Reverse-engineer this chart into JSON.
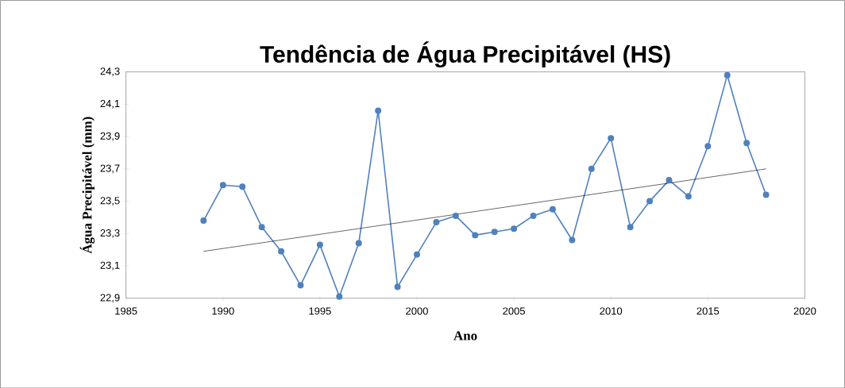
{
  "chart_data": {
    "type": "line",
    "title": "Tendência de Água Precipitável (HS)",
    "xlabel": "Ano",
    "ylabel": "Água Precipitável (mm)",
    "xlim": [
      1985,
      2020
    ],
    "xticks": [
      1985,
      1990,
      1995,
      2000,
      2005,
      2010,
      2015,
      2020
    ],
    "ylim": [
      22.9,
      24.3
    ],
    "yticks": [
      {
        "value": 22.9,
        "label": "22,9"
      },
      {
        "value": 23.1,
        "label": "23,1"
      },
      {
        "value": 23.3,
        "label": "23,3"
      },
      {
        "value": 23.5,
        "label": "23,5"
      },
      {
        "value": 23.7,
        "label": "23,7"
      },
      {
        "value": 23.9,
        "label": "23,9"
      },
      {
        "value": 24.1,
        "label": "24,1"
      },
      {
        "value": 24.3,
        "label": "24,3"
      }
    ],
    "series": [
      {
        "color": "#4f81bd",
        "marker": "circle",
        "x": [
          1989,
          1990,
          1991,
          1992,
          1993,
          1994,
          1995,
          1996,
          1997,
          1998,
          1999,
          2000,
          2001,
          2002,
          2003,
          2004,
          2005,
          2006,
          2007,
          2008,
          2009,
          2010,
          2011,
          2012,
          2013,
          2014,
          2015,
          2016,
          2017,
          2018
        ],
        "values": [
          23.38,
          23.6,
          23.59,
          23.34,
          23.19,
          22.98,
          23.23,
          22.91,
          23.24,
          24.06,
          22.97,
          23.17,
          23.37,
          23.41,
          23.29,
          23.31,
          23.33,
          23.41,
          23.45,
          23.26,
          23.7,
          23.89,
          23.34,
          23.5,
          23.63,
          23.53,
          23.84,
          24.28,
          23.86,
          23.54
        ]
      },
      {
        "color": "#000000",
        "marker": "none",
        "x": [
          1989,
          2018
        ],
        "values": [
          23.19,
          23.7
        ]
      }
    ]
  }
}
